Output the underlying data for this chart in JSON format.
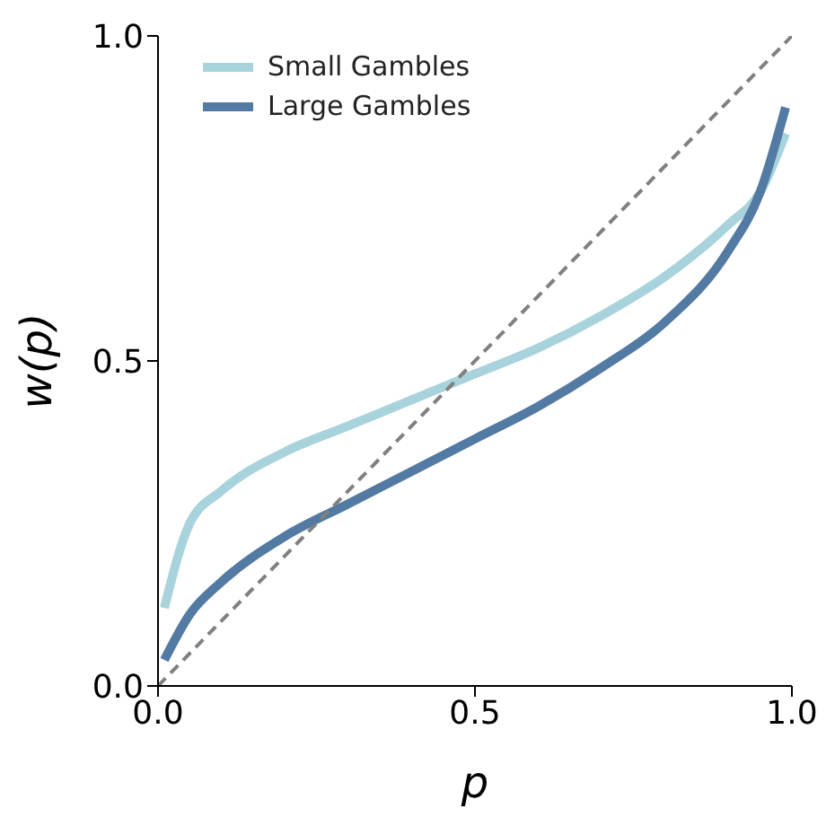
{
  "chart_data": {
    "type": "line",
    "xlabel": "p",
    "ylabel": "w(p)",
    "xlim": [
      0,
      1
    ],
    "ylim": [
      0,
      1
    ],
    "xticks": [
      {
        "value": 0,
        "label": "0.0"
      },
      {
        "value": 0.5,
        "label": "0.5"
      },
      {
        "value": 1,
        "label": "1.0"
      }
    ],
    "yticks": [
      {
        "value": 0,
        "label": "0.0"
      },
      {
        "value": 0.5,
        "label": "0.5"
      },
      {
        "value": 1,
        "label": "1.0"
      }
    ],
    "grid": false,
    "legend": "top left",
    "marker": "none",
    "series": [
      {
        "name": "Small Gambles",
        "color": "#a8d3dc",
        "x": [
          0.01,
          0.05,
          0.1,
          0.2,
          0.3,
          0.4,
          0.5,
          0.6,
          0.7,
          0.8,
          0.9,
          0.95,
          0.99
        ],
        "values": [
          0.12,
          0.25,
          0.3,
          0.36,
          0.4,
          0.44,
          0.48,
          0.52,
          0.57,
          0.63,
          0.71,
          0.76,
          0.85
        ]
      },
      {
        "name": "Large Gambles",
        "color": "#537aa2",
        "x": [
          0.01,
          0.05,
          0.1,
          0.2,
          0.3,
          0.4,
          0.5,
          0.6,
          0.7,
          0.8,
          0.9,
          0.95,
          0.99
        ],
        "values": [
          0.04,
          0.11,
          0.16,
          0.23,
          0.28,
          0.33,
          0.38,
          0.43,
          0.49,
          0.56,
          0.67,
          0.76,
          0.89
        ]
      },
      {
        "type": "line",
        "color": "#808080",
        "line_style": "dashed",
        "x": [
          0,
          1
        ],
        "values": [
          0,
          1
        ]
      }
    ]
  }
}
